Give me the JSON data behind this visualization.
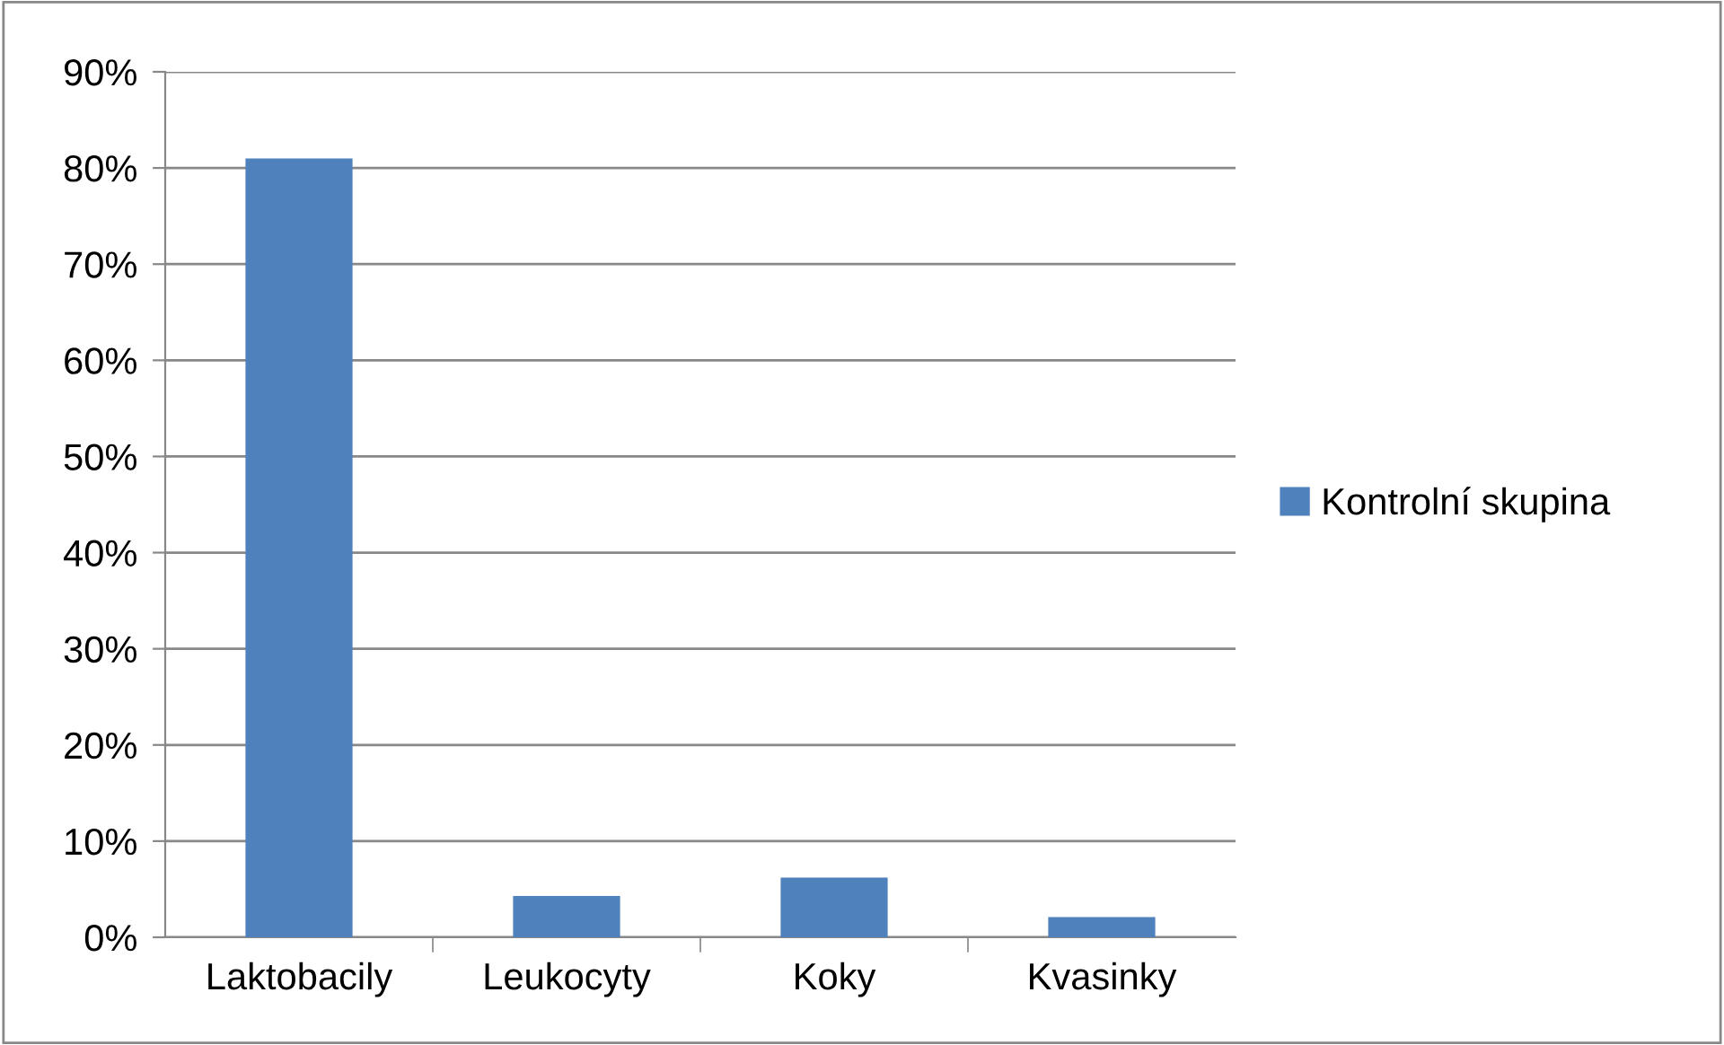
{
  "chart_data": {
    "type": "bar",
    "categories": [
      "Laktobacily",
      "Leukocyty",
      "Koky",
      "Kvasinky"
    ],
    "series": [
      {
        "name": "Kontrolní skupina",
        "color": "#4f81bd",
        "values": [
          81,
          4.3,
          6.2,
          2.1
        ]
      }
    ],
    "ylim": [
      0,
      90
    ],
    "yticks": [
      {
        "value": 0,
        "label": "0%"
      },
      {
        "value": 10,
        "label": "10%"
      },
      {
        "value": 20,
        "label": "20%"
      },
      {
        "value": 30,
        "label": "30%"
      },
      {
        "value": 40,
        "label": "40%"
      },
      {
        "value": 50,
        "label": "50%"
      },
      {
        "value": 60,
        "label": "60%"
      },
      {
        "value": 70,
        "label": "70%"
      },
      {
        "value": 80,
        "label": "80%"
      },
      {
        "value": 90,
        "label": "90%"
      }
    ],
    "grid": "y",
    "legend": "right"
  }
}
